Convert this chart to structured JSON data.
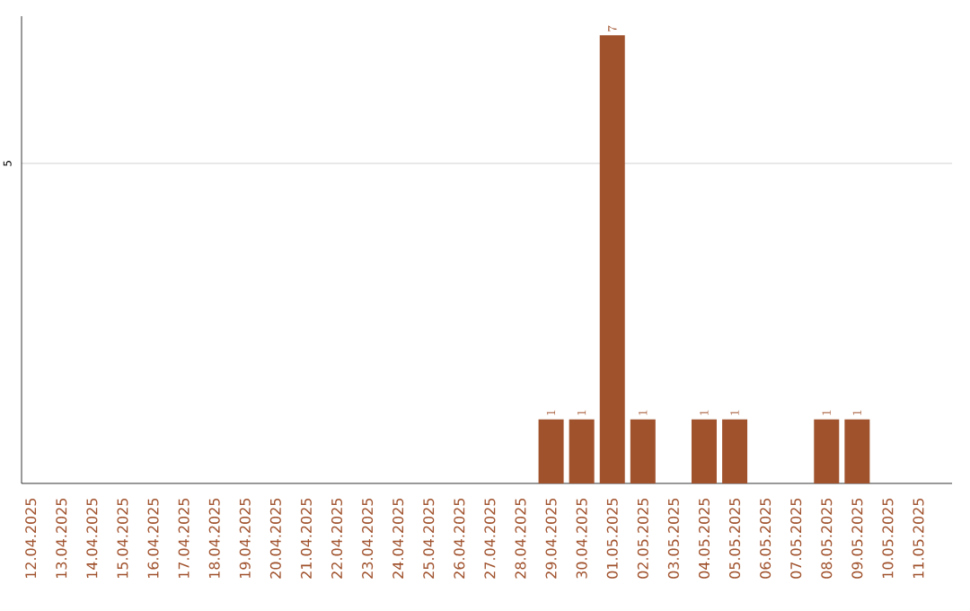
{
  "chart_data": {
    "type": "bar",
    "categories": [
      "12.04.2025",
      "13.04.2025",
      "14.04.2025",
      "15.04.2025",
      "16.04.2025",
      "17.04.2025",
      "18.04.2025",
      "19.04.2025",
      "20.04.2025",
      "21.04.2025",
      "22.04.2025",
      "23.04.2025",
      "24.04.2025",
      "25.04.2025",
      "26.04.2025",
      "27.04.2025",
      "28.04.2025",
      "29.04.2025",
      "30.04.2025",
      "01.05.2025",
      "02.05.2025",
      "03.05.2025",
      "04.05.2025",
      "05.05.2025",
      "06.05.2025",
      "07.05.2025",
      "08.05.2025",
      "09.05.2025",
      "10.05.2025",
      "11.05.2025"
    ],
    "values": [
      null,
      null,
      null,
      null,
      null,
      null,
      null,
      null,
      null,
      null,
      null,
      null,
      null,
      null,
      null,
      null,
      null,
      1,
      1,
      7,
      1,
      null,
      1,
      1,
      null,
      null,
      1,
      1,
      null,
      null
    ],
    "color": "#a0522d",
    "ylim": [
      0,
      7.3
    ],
    "yticks": [
      5
    ],
    "grid": "y",
    "data_labels": true
  }
}
